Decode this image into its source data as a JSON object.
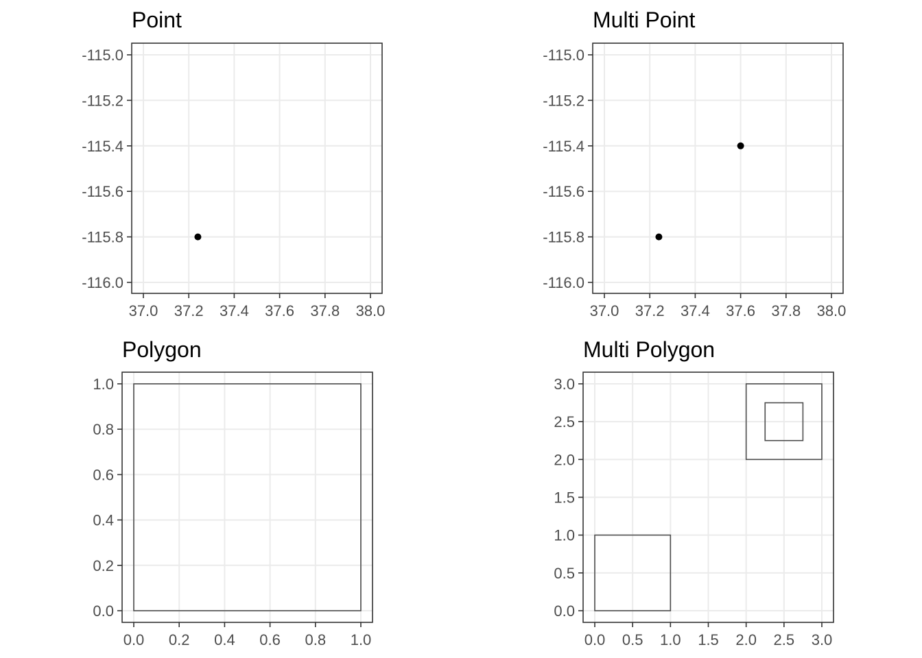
{
  "chart_data": [
    {
      "type": "scatter",
      "title": "Point",
      "xlim": [
        37.0,
        38.0
      ],
      "ylim": [
        -116.0,
        -115.0
      ],
      "x_ticks": [
        37.0,
        37.2,
        37.4,
        37.6,
        37.8,
        38.0
      ],
      "y_ticks": [
        -115.0,
        -115.2,
        -115.4,
        -115.6,
        -115.8,
        -116.0
      ],
      "x_tick_labels": [
        "37.0",
        "37.2",
        "37.4",
        "37.6",
        "37.8",
        "38.0"
      ],
      "y_tick_labels": [
        "-115.0",
        "-115.2",
        "-115.4",
        "-115.6",
        "-115.8",
        "-116.0"
      ],
      "grid": true,
      "points": [
        {
          "x": 37.24,
          "y": -115.8
        }
      ],
      "rings": []
    },
    {
      "type": "scatter",
      "title": "Multi Point",
      "xlim": [
        37.0,
        38.0
      ],
      "ylim": [
        -116.0,
        -115.0
      ],
      "x_ticks": [
        37.0,
        37.2,
        37.4,
        37.6,
        37.8,
        38.0
      ],
      "y_ticks": [
        -115.0,
        -115.2,
        -115.4,
        -115.6,
        -115.8,
        -116.0
      ],
      "x_tick_labels": [
        "37.0",
        "37.2",
        "37.4",
        "37.6",
        "37.8",
        "38.0"
      ],
      "y_tick_labels": [
        "-115.0",
        "-115.2",
        "-115.4",
        "-115.6",
        "-115.8",
        "-116.0"
      ],
      "grid": true,
      "points": [
        {
          "x": 37.24,
          "y": -115.8
        },
        {
          "x": 37.6,
          "y": -115.4
        }
      ],
      "rings": []
    },
    {
      "type": "polygon",
      "title": "Polygon",
      "xlim": [
        0.0,
        1.0
      ],
      "ylim": [
        0.0,
        1.0
      ],
      "x_ticks": [
        0.0,
        0.2,
        0.4,
        0.6,
        0.8,
        1.0
      ],
      "y_ticks": [
        1.0,
        0.8,
        0.6,
        0.4,
        0.2,
        0.0
      ],
      "x_tick_labels": [
        "0.0",
        "0.2",
        "0.4",
        "0.6",
        "0.8",
        "1.0"
      ],
      "y_tick_labels": [
        "1.0",
        "0.8",
        "0.6",
        "0.4",
        "0.2",
        "0.0"
      ],
      "grid": true,
      "points": [],
      "rings": [
        {
          "x0": 0.0,
          "y0": 0.0,
          "x1": 1.0,
          "y1": 1.0
        }
      ]
    },
    {
      "type": "polygon",
      "title": "Multi Polygon",
      "xlim": [
        0.0,
        3.0
      ],
      "ylim": [
        0.0,
        3.0
      ],
      "x_ticks": [
        0.0,
        0.5,
        1.0,
        1.5,
        2.0,
        2.5,
        3.0
      ],
      "y_ticks": [
        3.0,
        2.5,
        2.0,
        1.5,
        1.0,
        0.5,
        0.0
      ],
      "x_tick_labels": [
        "0.0",
        "0.5",
        "1.0",
        "1.5",
        "2.0",
        "2.5",
        "3.0"
      ],
      "y_tick_labels": [
        "3.0",
        "2.5",
        "2.0",
        "1.5",
        "1.0",
        "0.5",
        "0.0"
      ],
      "grid": true,
      "points": [],
      "rings": [
        {
          "x0": 0.0,
          "y0": 0.0,
          "x1": 1.0,
          "y1": 1.0
        },
        {
          "x0": 2.0,
          "y0": 2.0,
          "x1": 3.0,
          "y1": 3.0
        },
        {
          "x0": 2.25,
          "y0": 2.25,
          "x1": 2.75,
          "y1": 2.75
        }
      ]
    }
  ]
}
